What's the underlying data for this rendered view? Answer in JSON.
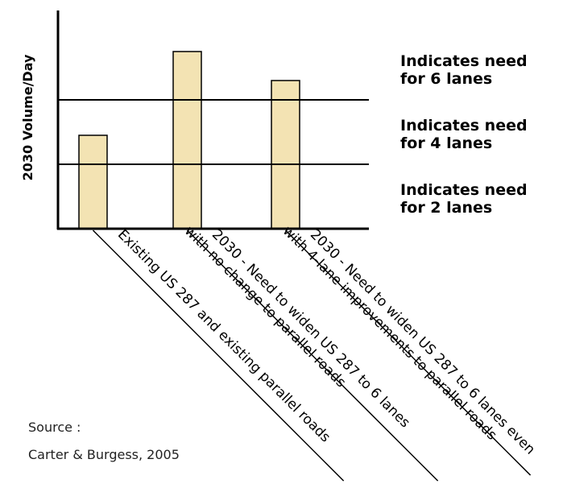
{
  "chart_data": {
    "type": "bar",
    "title": "",
    "xlabel": "",
    "ylabel": "2030 Volume/Day",
    "ylim": [
      0,
      3
    ],
    "grid": false,
    "categories": [
      "Existing US 287 and existing parallel roads",
      "2030 - Need to widen US 287 to 6 lanes with no change to parallel roads",
      "2030 - Need to widen US 287 to 6 lanes even with 4-lane improvements to parallel roads"
    ],
    "category_lines": [
      [
        "Existing US 287 and existing parallel roads"
      ],
      [
        "2030 - Need to widen US 287 to 6 lanes",
        "with no change to parallel roads"
      ],
      [
        "2030 - Need to widen US 287 to 6 lanes even",
        "with 4-lane improvements to parallel roads"
      ]
    ],
    "values": [
      1.45,
      2.75,
      2.3
    ],
    "reference_lines": [
      {
        "value": 1,
        "label_lines": [
          "Indicates need",
          "for 4 lanes"
        ]
      },
      {
        "value": 2,
        "label_lines": [
          "Indicates need",
          "for 6  lanes"
        ]
      }
    ],
    "band_labels": [
      {
        "value": 2.5,
        "label_lines": [
          "Indicates need",
          "for 6  lanes"
        ]
      },
      {
        "value": 1.5,
        "label_lines": [
          "Indicates need",
          "for 4 lanes"
        ]
      },
      {
        "value": 0.5,
        "label_lines": [
          "Indicates need",
          "for 2  lanes"
        ]
      }
    ],
    "colors": {
      "bar_fill": "#f3e3b3",
      "bar_stroke": "#000000",
      "axis": "#000000"
    }
  },
  "source": {
    "label": "Source :",
    "text": "Carter & Burgess, 2005"
  }
}
